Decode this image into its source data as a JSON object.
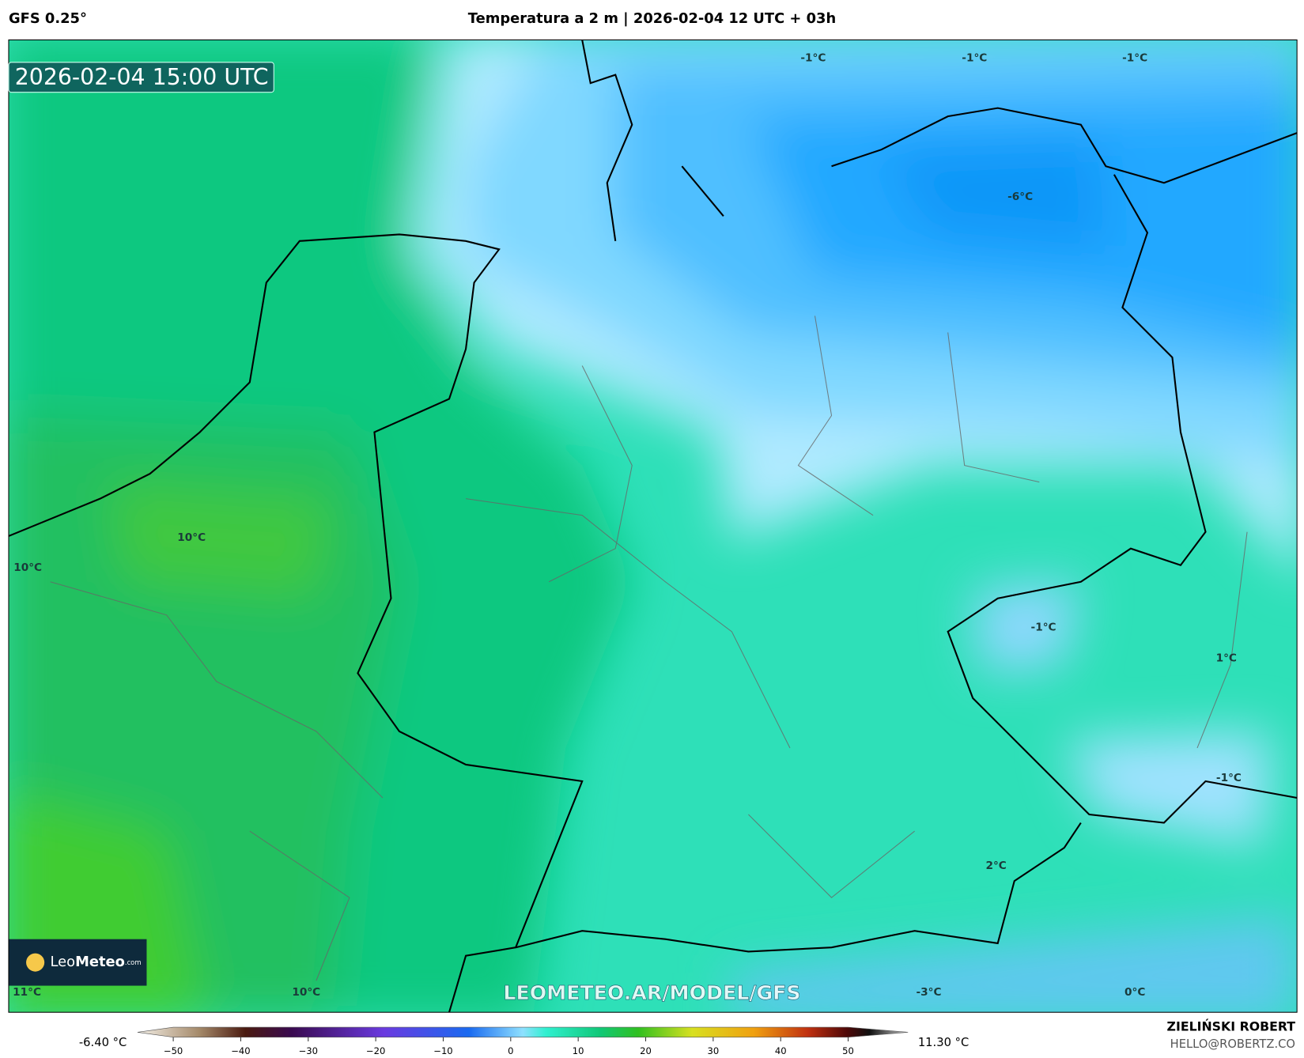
{
  "header": {
    "model": "GFS 0.25°",
    "title": "Temperatura a 2 m | 2026-02-04 12 UTC + 03h"
  },
  "timestamp": "2026-02-04 15:00 UTC",
  "map": {
    "labels": [
      "-1°C",
      "-1°C",
      "-1°C",
      "-6°C",
      "10°C",
      "10°C",
      "-1°C",
      "1°C",
      "-1°C",
      "2°C",
      "11°C",
      "10°C",
      "-3°C",
      "0°C"
    ]
  },
  "watermark": "LEOMETEO.AR/MODEL/GFS",
  "logo": {
    "brand": "Leo",
    "brand_bold": "Meteo",
    "domain": ".com"
  },
  "colorbar": {
    "min_label": "-6.40 °C",
    "max_label": "11.30 °C",
    "lim": [
      -50,
      50
    ],
    "ticks": [
      {
        "value": -50,
        "label": "−50"
      },
      {
        "value": -40,
        "label": "−40"
      },
      {
        "value": -30,
        "label": "−30"
      },
      {
        "value": -20,
        "label": "−20"
      },
      {
        "value": -10,
        "label": "−10"
      },
      0,
      10,
      20,
      30,
      40,
      50
    ]
  },
  "author": {
    "name": "ZIELIŃSKI ROBERT",
    "email": "HELLO@ROBERTZ.CO"
  }
}
